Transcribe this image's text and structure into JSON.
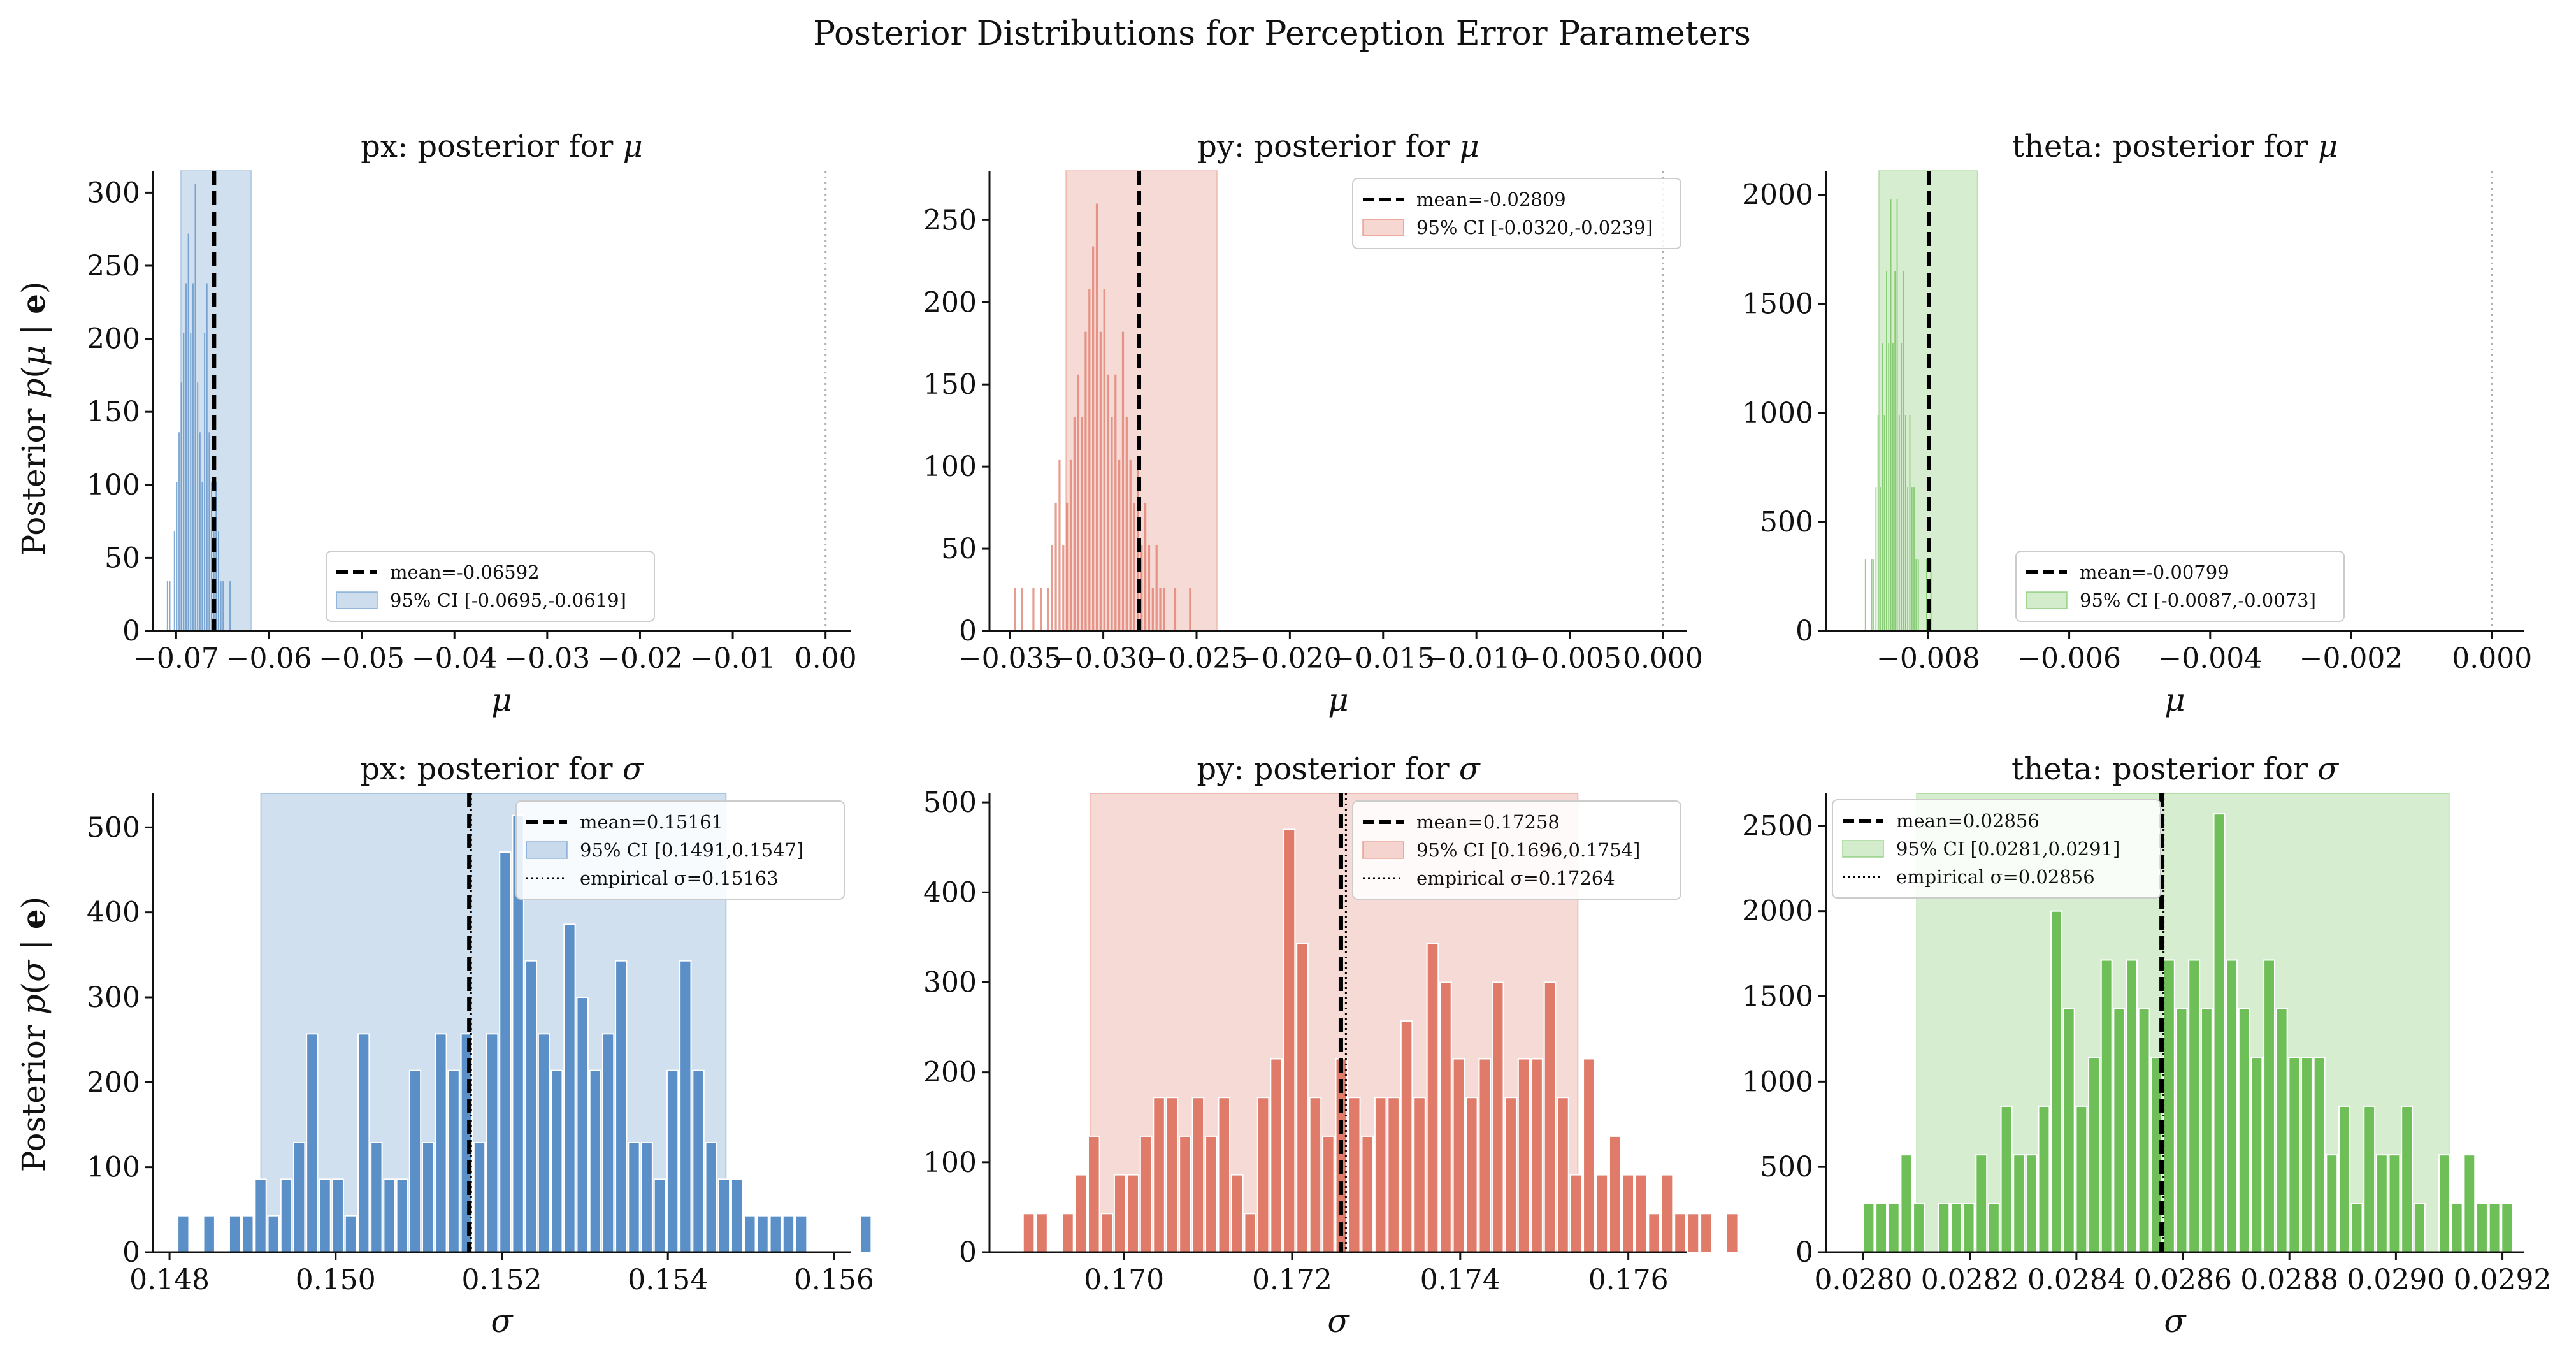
{
  "figure": {
    "title": "Posterior Distributions for Perception Error Parameters",
    "row_ylabels": [
      "Posterior p(μ | e)",
      "Posterior p(σ | e)"
    ]
  },
  "colors": {
    "px": "#5a8fc7",
    "py": "#e07b6a",
    "theta": "#6ebf57",
    "mean_line": "#000000",
    "zero_line": "#b0b0b0"
  },
  "chart_data": [
    {
      "type": "bar",
      "panel": "px-mu",
      "title": "px: posterior for μ",
      "xlabel": "μ",
      "color": "#5a8fc7",
      "xlim": [
        -0.0725,
        0.0027
      ],
      "ylim": [
        0,
        315
      ],
      "xticks": [
        -0.07,
        -0.06,
        -0.05,
        -0.04,
        -0.03,
        -0.02,
        -0.01,
        0.0
      ],
      "xtick_labels": [
        "−0.07",
        "−0.06",
        "−0.05",
        "−0.04",
        "−0.03",
        "−0.02",
        "−0.01",
        "0.00"
      ],
      "yticks": [
        0,
        50,
        100,
        150,
        200,
        250,
        300
      ],
      "bin_start": -0.071,
      "bin_width": 0.00025,
      "values": [
        34,
        34,
        0,
        68,
        102,
        136,
        170,
        204,
        238,
        272,
        204,
        238,
        306,
        170,
        136,
        102,
        204,
        238,
        136,
        102,
        68,
        102,
        68,
        34,
        34,
        0,
        0,
        34
      ],
      "mean": -0.06592,
      "ci": [
        -0.0695,
        -0.0619
      ],
      "zero_line": 0,
      "legend": {
        "position": "lower-right",
        "mean_label": "mean=-0.06592",
        "ci_label": "95% CI [-0.0695,-0.0619]"
      }
    },
    {
      "type": "bar",
      "panel": "py-mu",
      "title": "py: posterior for μ",
      "xlabel": "μ",
      "color": "#e07b6a",
      "xlim": [
        -0.0361,
        0.0013
      ],
      "ylim": [
        0,
        280
      ],
      "xticks": [
        -0.035,
        -0.03,
        -0.025,
        -0.02,
        -0.015,
        -0.01,
        -0.005,
        0.0
      ],
      "xtick_labels": [
        "−0.035",
        "−0.030",
        "−0.025",
        "−0.020",
        "−0.015",
        "−0.010",
        "−0.005",
        "0.000"
      ],
      "yticks": [
        0,
        50,
        100,
        150,
        200,
        250
      ],
      "bin_start": -0.0348,
      "bin_width": 0.0002,
      "values": [
        26,
        0,
        26,
        0,
        0,
        26,
        0,
        26,
        0,
        26,
        52,
        78,
        104,
        52,
        78,
        104,
        130,
        156,
        130,
        182,
        208,
        234,
        260,
        182,
        208,
        156,
        130,
        156,
        104,
        182,
        130,
        104,
        78,
        104,
        52,
        78,
        52,
        26,
        52,
        26,
        26,
        0,
        0,
        26,
        0,
        0,
        0,
        26
      ],
      "mean": -0.02809,
      "ci": [
        -0.032,
        -0.0239
      ],
      "zero_line": 0,
      "legend": {
        "position": "upper-right",
        "mean_label": "mean=-0.02809",
        "ci_label": "95% CI [-0.0320,-0.0239]"
      }
    },
    {
      "type": "bar",
      "panel": "theta-mu",
      "title": "theta: posterior for μ",
      "xlabel": "μ",
      "color": "#6ebf57",
      "xlim": [
        -0.00945,
        0.00045
      ],
      "ylim": [
        0,
        2110
      ],
      "xticks": [
        -0.008,
        -0.006,
        -0.004,
        -0.002,
        0.0
      ],
      "xtick_labels": [
        "−0.008",
        "−0.006",
        "−0.004",
        "−0.002",
        "0.000"
      ],
      "yticks": [
        0,
        500,
        1000,
        1500,
        2000
      ],
      "bin_start": -0.0089,
      "bin_width": 3e-05,
      "values": [
        330,
        0,
        0,
        330,
        330,
        660,
        990,
        660,
        1320,
        990,
        1650,
        1320,
        1980,
        1320,
        1650,
        1980,
        990,
        1320,
        1650,
        990,
        660,
        990,
        660,
        660,
        330,
        330,
        0,
        0,
        0,
        330,
        0,
        330
      ],
      "mean": -0.00799,
      "ci": [
        -0.0087,
        -0.0073
      ],
      "zero_line": 0,
      "legend": {
        "position": "lower-right",
        "mean_label": "mean=-0.00799",
        "ci_label": "95% CI [-0.0087,-0.0073]"
      }
    },
    {
      "type": "bar",
      "panel": "px-sigma",
      "title": "px: posterior for σ",
      "xlabel": "σ",
      "color": "#5a8fc7",
      "xlim": [
        0.1478,
        0.1562
      ],
      "ylim": [
        0,
        540
      ],
      "xticks": [
        0.148,
        0.15,
        0.152,
        0.154,
        0.156
      ],
      "xtick_labels": [
        "0.148",
        "0.150",
        "0.152",
        "0.154",
        "0.156"
      ],
      "yticks": [
        0,
        100,
        200,
        300,
        400,
        500
      ],
      "bin_start": 0.1481,
      "bin_width": 0.000155,
      "values": [
        43,
        0,
        43,
        0,
        43,
        43,
        86,
        43,
        86,
        129,
        257,
        86,
        86,
        43,
        257,
        129,
        86,
        86,
        214,
        129,
        257,
        214,
        257,
        129,
        257,
        471,
        514,
        343,
        257,
        214,
        386,
        300,
        214,
        257,
        343,
        129,
        129,
        86,
        214,
        343,
        214,
        129,
        86,
        86,
        43,
        43,
        43,
        43,
        43,
        0,
        0,
        0,
        0,
        43
      ],
      "mean": 0.15161,
      "empirical": 0.15163,
      "ci": [
        0.1491,
        0.1547
      ],
      "legend": {
        "position": "upper-right",
        "mean_label": "mean=0.15161",
        "ci_label": "95% CI [0.1491,0.1547]",
        "emp_label": "empirical σ=0.15163"
      }
    },
    {
      "type": "bar",
      "panel": "py-sigma",
      "title": "py: posterior for σ",
      "xlabel": "σ",
      "color": "#e07b6a",
      "xlim": [
        0.1684,
        0.1767
      ],
      "ylim": [
        0,
        510
      ],
      "xticks": [
        0.17,
        0.172,
        0.174,
        0.176
      ],
      "xtick_labels": [
        "0.170",
        "0.172",
        "0.174",
        "0.176"
      ],
      "yticks": [
        0,
        100,
        200,
        300,
        400,
        500
      ],
      "bin_start": 0.1688,
      "bin_width": 0.000155,
      "values": [
        43,
        43,
        0,
        43,
        86,
        129,
        43,
        86,
        86,
        129,
        172,
        172,
        129,
        172,
        129,
        172,
        86,
        43,
        172,
        215,
        470,
        343,
        172,
        129,
        215,
        172,
        129,
        172,
        172,
        257,
        172,
        343,
        300,
        215,
        172,
        215,
        300,
        172,
        215,
        215,
        300,
        172,
        86,
        215,
        86,
        129,
        86,
        86,
        43,
        86,
        43,
        43,
        43,
        0,
        43
      ],
      "mean": 0.17258,
      "empirical": 0.17264,
      "ci": [
        0.1696,
        0.1754
      ],
      "legend": {
        "position": "upper-right",
        "mean_label": "mean=0.17258",
        "ci_label": "95% CI [0.1696,0.1754]",
        "emp_label": "empirical σ=0.17264"
      }
    },
    {
      "type": "bar",
      "panel": "theta-sigma",
      "title": "theta: posterior for σ",
      "xlabel": "σ",
      "color": "#6ebf57",
      "xlim": [
        0.02793,
        0.02924
      ],
      "ylim": [
        0,
        2690
      ],
      "xticks": [
        0.028,
        0.0282,
        0.0284,
        0.0286,
        0.0288,
        0.029,
        0.0292
      ],
      "xtick_labels": [
        "0.0280",
        "0.0282",
        "0.0284",
        "0.0286",
        "0.0288",
        "0.0290",
        "0.0292"
      ],
      "yticks": [
        0,
        500,
        1000,
        1500,
        2000,
        2500
      ],
      "bin_start": 0.028,
      "bin_width": 2.35e-05,
      "values": [
        285,
        285,
        285,
        571,
        285,
        0,
        285,
        285,
        285,
        571,
        285,
        856,
        571,
        571,
        856,
        2000,
        1428,
        856,
        1142,
        1713,
        1428,
        1713,
        1428,
        1142,
        1713,
        1428,
        1713,
        1428,
        2570,
        1713,
        1428,
        1142,
        1713,
        1428,
        1142,
        1142,
        1142,
        571,
        856,
        285,
        856,
        571,
        571,
        856,
        285,
        0,
        571,
        285,
        571,
        285,
        285,
        285
      ],
      "mean": 0.02856,
      "empirical": 0.02856,
      "ci": [
        0.0281,
        0.0291
      ],
      "legend": {
        "position": "upper-left",
        "mean_label": "mean=0.02856",
        "ci_label": "95% CI [0.0281,0.0291]",
        "emp_label": "empirical σ=0.02856"
      }
    }
  ]
}
